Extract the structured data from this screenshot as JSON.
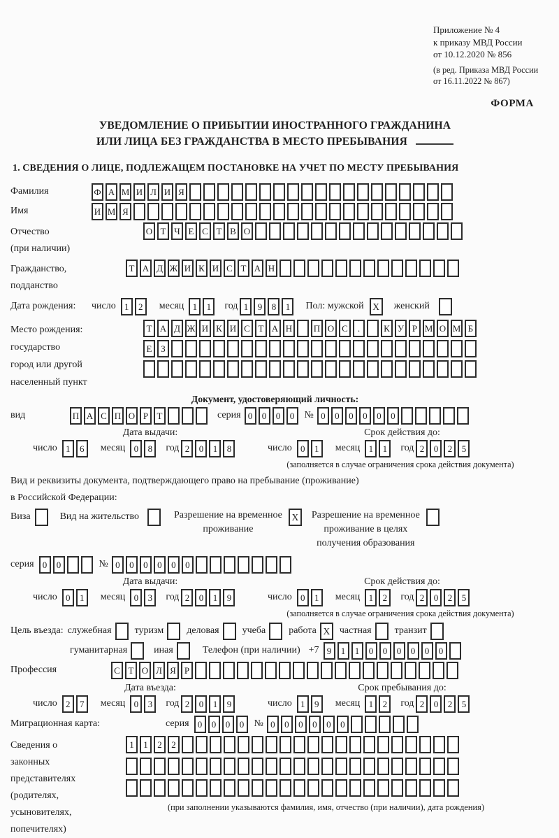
{
  "colors": {
    "ink": "#1e1e1e",
    "box_border": "#2d2d2d",
    "background": "#fbfbfb"
  },
  "header": {
    "appendix_lines": [
      "Приложение № 4",
      "к приказу МВД России",
      "от 10.12.2020 № 856"
    ],
    "revision_lines": [
      "(в ред. Приказа МВД России",
      "от 16.11.2022 № 867)"
    ],
    "form_label": "ФОРМА"
  },
  "title": {
    "line1": "УВЕДОМЛЕНИЕ О ПРИБЫТИИ ИНОСТРАННОГО ГРАЖДАНИНА",
    "line2": "ИЛИ ЛИЦА БЕЗ ГРАЖДАНСТВА В МЕСТО ПРЕБЫВАНИЯ"
  },
  "section1": {
    "heading": "1. СВЕДЕНИЯ О ЛИЦЕ, ПОДЛЕЖАЩЕМ ПОСТАНОВКЕ НА УЧЕТ ПО МЕСТУ ПРЕБЫВАНИЯ"
  },
  "date_labels": {
    "day": "число",
    "month": "месяц",
    "year": "год"
  },
  "person": {
    "surname": {
      "label": "Фамилия",
      "value": "ФАМИЛИЯ",
      "cells": 26
    },
    "given_name": {
      "label": "Имя",
      "value": "ИМЯ",
      "cells": 26
    },
    "patronymic": {
      "label_lines": [
        "Отчество",
        "(при наличии)"
      ],
      "value": "ОТЧЕСТВО",
      "cells": 23
    },
    "citizenship": {
      "label_lines": [
        "Гражданство,",
        "подданство"
      ],
      "value": "ТАДЖИКИСТАН",
      "cells": 24
    },
    "birth_date": {
      "label": "Дата рождения:",
      "day": "12",
      "month": "11",
      "year": "1981"
    },
    "gender": {
      "label": "Пол: мужской",
      "male_checked": "X",
      "female_label": "женский",
      "female_checked": ""
    },
    "birth_place": {
      "label_lines": [
        "Место рождения:",
        "государство",
        "город или другой",
        "населенный пункт"
      ],
      "rows": [
        {
          "value": "ТАДЖИКИСТАН ПОС. КУРМОМБ",
          "cells": 24
        },
        {
          "value": "ЕЗ",
          "cells": 24
        },
        {
          "value": "",
          "cells": 24
        }
      ]
    }
  },
  "identity_doc": {
    "heading": "Документ, удостоверяющий личность:",
    "kind_label": "вид",
    "kind": {
      "value": "ПАСПОРТ",
      "cells": 10
    },
    "series_label": "серия",
    "series": {
      "value": "0000",
      "cells": 4
    },
    "number_label": "№",
    "number": {
      "value": "000000",
      "cells": 11
    },
    "issue_heading": "Дата выдачи:",
    "issue": {
      "day": "16",
      "month": "08",
      "year": "2018"
    },
    "valid_heading": "Срок действия до:",
    "valid": {
      "day": "01",
      "month": "11",
      "year": "2025"
    },
    "note": "(заполняется в случае ограничения срока действия документа)"
  },
  "residence_doc": {
    "intro_lines": [
      "Вид и реквизиты документа, подтверждающего право на пребывание (проживание)",
      "в Российской Федерации:"
    ],
    "options": [
      {
        "label": "Виза",
        "checked": ""
      },
      {
        "label": "Вид на жительство",
        "checked": ""
      },
      {
        "label_lines": [
          "Разрешение на временное",
          "проживание"
        ],
        "checked": "X"
      },
      {
        "label_lines": [
          "Разрешение на временное",
          "проживание в целях",
          "получения образования"
        ],
        "checked": ""
      }
    ],
    "series_label": "серия",
    "series": {
      "value": "00",
      "cells": 4
    },
    "number_label": "№",
    "number": {
      "value": "000000",
      "cells": 13
    },
    "issue_heading": "Дата выдачи:",
    "issue": {
      "day": "01",
      "month": "03",
      "year": "2019"
    },
    "valid_heading": "Срок действия до:",
    "valid": {
      "day": "01",
      "month": "12",
      "year": "2025"
    },
    "note": "(заполняется в случае ограничения срока действия документа)"
  },
  "visit": {
    "purpose_label": "Цель въезда:",
    "purposes_row1": [
      {
        "label": "служебная",
        "checked": ""
      },
      {
        "label": "туризм",
        "checked": ""
      },
      {
        "label": "деловая",
        "checked": ""
      },
      {
        "label": "учеба",
        "checked": ""
      },
      {
        "label": "работа",
        "checked": "X"
      },
      {
        "label": "частная",
        "checked": ""
      },
      {
        "label": "транзит",
        "checked": ""
      }
    ],
    "purposes_row2": [
      {
        "label": "гуманитарная",
        "checked": ""
      },
      {
        "label": "иная",
        "checked": ""
      }
    ],
    "phone_label": "Телефон (при наличии)",
    "phone_prefix": "+7",
    "phone": {
      "value": "911000000",
      "cells": 10
    },
    "profession_label": "Профессия",
    "profession": {
      "value": "СТОЛЯР",
      "cells": 25
    },
    "entry_heading": "Дата въезда:",
    "entry": {
      "day": "27",
      "month": "03",
      "year": "2019"
    },
    "stay_heading": "Срок пребывания до:",
    "stay": {
      "day": "19",
      "month": "12",
      "year": "2025"
    },
    "migration_card_label": "Миграционная карта:",
    "migration_series_label": "серия",
    "migration_series": {
      "value": "0000",
      "cells": 4
    },
    "migration_number_label": "№",
    "migration_number": {
      "value": "000000",
      "cells": 11
    }
  },
  "representatives": {
    "label_lines": [
      "Сведения о",
      "законных",
      "представителях",
      "(родителях,",
      "усыновителях,",
      "попечителях)"
    ],
    "rows": [
      {
        "value": "1122",
        "cells": 24
      },
      {
        "value": "",
        "cells": 24
      },
      {
        "value": "",
        "cells": 24
      }
    ],
    "note": "(при заполнении указываются фамилия, имя, отчество (при наличии), дата рождения)"
  }
}
